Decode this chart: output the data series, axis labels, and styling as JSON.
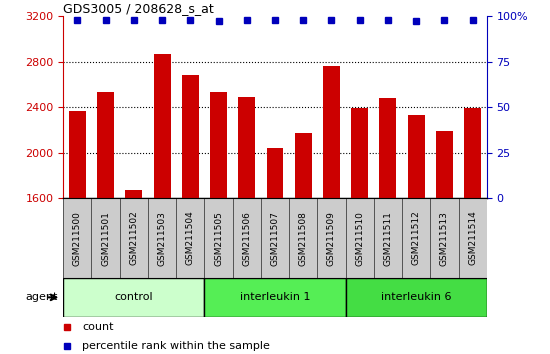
{
  "title": "GDS3005 / 208628_s_at",
  "samples": [
    "GSM211500",
    "GSM211501",
    "GSM211502",
    "GSM211503",
    "GSM211504",
    "GSM211505",
    "GSM211506",
    "GSM211507",
    "GSM211508",
    "GSM211509",
    "GSM211510",
    "GSM211511",
    "GSM211512",
    "GSM211513",
    "GSM211514"
  ],
  "counts": [
    2370,
    2530,
    1670,
    2870,
    2680,
    2530,
    2490,
    2040,
    2170,
    2760,
    2390,
    2480,
    2330,
    2190,
    2390
  ],
  "percentile_ranks": [
    98,
    98,
    98,
    98,
    98,
    97,
    98,
    98,
    98,
    98,
    98,
    98,
    97,
    98,
    98
  ],
  "groups": [
    {
      "label": "control",
      "start": 0,
      "end": 5,
      "color": "#ccffcc"
    },
    {
      "label": "interleukin 1",
      "start": 5,
      "end": 10,
      "color": "#55ee55"
    },
    {
      "label": "interleukin 6",
      "start": 10,
      "end": 15,
      "color": "#44dd44"
    }
  ],
  "ylim_left": [
    1600,
    3200
  ],
  "ylim_right": [
    0,
    100
  ],
  "yticks_left": [
    1600,
    2000,
    2400,
    2800,
    3200
  ],
  "yticks_right": [
    0,
    25,
    50,
    75,
    100
  ],
  "bar_color": "#cc0000",
  "dot_color": "#0000bb",
  "bar_width": 0.6,
  "left_axis_color": "#cc0000",
  "right_axis_color": "#0000bb",
  "sample_box_color": "#cccccc"
}
